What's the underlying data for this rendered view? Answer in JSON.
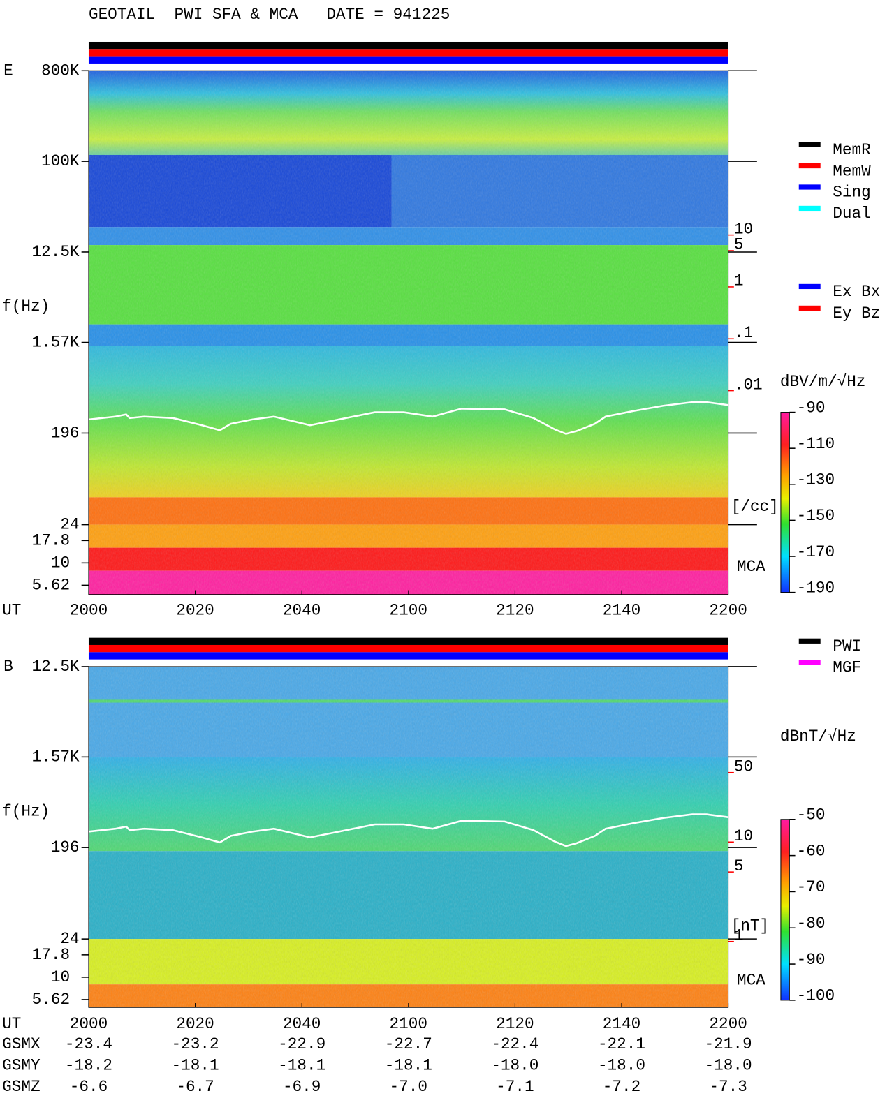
{
  "title": "GEOTAIL  PWI SFA & MCA   DATE = 941225",
  "chart_data": [
    {
      "type": "spectrogram",
      "panel": "E",
      "ylabel": "f(Hz)",
      "xlabel": "UT",
      "ylim": [
        24,
        800000
      ],
      "yticks": [
        {
          "value": 800000,
          "label": "800K"
        },
        {
          "value": 100000,
          "label": "100K"
        },
        {
          "value": 12500,
          "label": "12.5K"
        },
        {
          "value": 1570,
          "label": "1.57K"
        },
        196,
        24
      ],
      "mca_ticks": [
        17.8,
        10,
        5.62
      ],
      "mca_label": "MCA",
      "times": [
        "2000",
        "2020",
        "2040",
        "2100",
        "2120",
        "2140",
        "2200"
      ],
      "legend": [
        {
          "name": "MemR",
          "color": "#000000"
        },
        {
          "name": "MemW",
          "color": "#ff0000"
        },
        {
          "name": "Sing",
          "color": "#0000ff"
        },
        {
          "name": "Dual",
          "color": "#00ffff"
        }
      ],
      "legend2": [
        {
          "name": "Ex Bx",
          "color": "#0000ff"
        },
        {
          "name": "Ey Bz",
          "color": "#ff0000"
        }
      ],
      "colorbar": {
        "label": "dBV/m/√Hz",
        "lim": [
          -190,
          -90
        ],
        "ticks": [
          -90,
          -110,
          -130,
          -150,
          -170,
          -190
        ]
      },
      "scale": {
        "label": "[/cc]",
        "ticks": [
          10,
          5,
          1,
          {
            "value": 0.1,
            "label": ".1"
          },
          {
            "value": 0.01,
            "label": ".01"
          }
        ]
      }
    },
    {
      "type": "spectrogram",
      "panel": "B",
      "ylabel": "f(Hz)",
      "xlabel": "UT",
      "ylim": [
        24,
        12500
      ],
      "yticks": [
        {
          "value": 12500,
          "label": "12.5K"
        },
        {
          "value": 1570,
          "label": "1.57K"
        },
        196,
        24
      ],
      "mca_ticks": [
        17.8,
        10,
        5.62
      ],
      "mca_label": "MCA",
      "times": [
        "2000",
        "2020",
        "2040",
        "2100",
        "2120",
        "2140",
        "2200"
      ],
      "legend": [
        {
          "name": "PWI",
          "color": "#000000"
        },
        {
          "name": "MGF",
          "color": "#ff00ff"
        }
      ],
      "legend2": [],
      "colorbar": {
        "label": "dBnT/√Hz",
        "lim": [
          -100,
          -50
        ],
        "ticks": [
          -50,
          -60,
          -70,
          -80,
          -90,
          -100
        ]
      },
      "scale": {
        "label": "[nT]",
        "ticks": [
          50,
          10,
          5,
          1
        ]
      }
    }
  ],
  "orbit": {
    "rows": [
      {
        "name": "GSMX",
        "values": [
          -23.4,
          -23.2,
          -22.9,
          -22.7,
          -22.4,
          -22.1,
          -21.9
        ],
        "value_labels": [
          "-23.4",
          "-23.2",
          "-22.9",
          "-22.7",
          "-22.4",
          "-22.1",
          "-21.9"
        ]
      },
      {
        "name": "GSMY",
        "values": [
          -18.2,
          -18.1,
          -18.1,
          -18.1,
          -18.0,
          -18.0,
          -18.0
        ],
        "value_labels": [
          "-18.2",
          "-18.1",
          "-18.1",
          "-18.1",
          "-18.0",
          "-18.0",
          "-18.0"
        ]
      },
      {
        "name": "GSMZ",
        "values": [
          -6.6,
          -6.7,
          -6.9,
          -7.0,
          -7.1,
          -7.2,
          -7.3
        ],
        "value_labels": [
          "-6.6",
          "-6.7",
          "-6.9",
          "-7.0",
          "-7.1",
          "-7.2",
          "-7.3"
        ]
      }
    ]
  }
}
